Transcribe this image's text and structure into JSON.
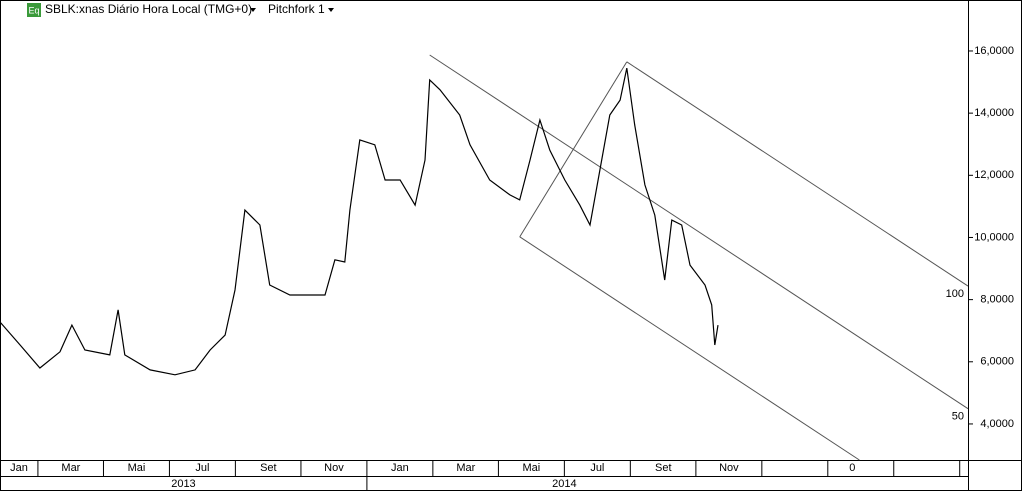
{
  "chart_data": {
    "type": "line",
    "icon": "Eq",
    "title": "SBLK:xnas Diário Hora Local (TMG+0)",
    "study": "Pitchfork 1",
    "color": "#000000",
    "x": [
      2013.071,
      2013.122,
      2013.172,
      2013.223,
      2013.253,
      2013.286,
      2013.349,
      2013.37,
      2013.387,
      2013.451,
      2013.514,
      2013.565,
      2013.603,
      2013.641,
      2013.666,
      2013.691,
      2013.729,
      2013.754,
      2013.805,
      2013.856,
      2013.894,
      2013.919,
      2013.944,
      2013.957,
      2013.982,
      2014.02,
      2014.046,
      2014.084,
      2014.122,
      2014.147,
      2014.159,
      2014.185,
      2014.235,
      2014.261,
      2014.311,
      2014.362,
      2014.387,
      2014.413,
      2014.438,
      2014.463,
      2014.501,
      2014.539,
      2014.565,
      2014.59,
      2014.615,
      2014.641,
      2014.658,
      2014.678,
      2014.704,
      2014.729,
      2014.754,
      2014.772,
      2014.797,
      2014.818,
      2014.856,
      2014.873,
      2014.881,
      2014.889
    ],
    "values": [
      7.28,
      6.54,
      5.8,
      6.32,
      7.18,
      6.38,
      6.22,
      7.67,
      6.22,
      5.74,
      5.58,
      5.74,
      6.38,
      6.86,
      8.31,
      10.88,
      10.4,
      8.47,
      8.15,
      8.15,
      8.15,
      9.28,
      9.21,
      10.88,
      13.14,
      12.98,
      11.85,
      11.85,
      11.04,
      12.49,
      15.07,
      14.75,
      13.94,
      12.98,
      11.85,
      11.37,
      11.21,
      12.49,
      13.78,
      12.81,
      11.85,
      11.04,
      10.4,
      12.17,
      13.94,
      14.42,
      15.45,
      13.62,
      11.69,
      10.72,
      8.63,
      10.56,
      10.4,
      9.11,
      8.47,
      7.83,
      6.54,
      7.18
    ],
    "xlim": [
      2013.071,
      2015.522
    ],
    "ylim": [
      2.84,
      17.64
    ],
    "yticks": [
      {
        "value": 4,
        "label": "4,0000"
      },
      {
        "value": 6,
        "label": "6,0000"
      },
      {
        "value": 8,
        "label": "8,0000"
      },
      {
        "value": 10,
        "label": "10,0000"
      },
      {
        "value": 12,
        "label": "12,0000"
      },
      {
        "value": 14,
        "label": "14,0000"
      },
      {
        "value": 16,
        "label": "16,0000"
      }
    ],
    "xticks": [
      {
        "value": 2013.0,
        "label": "Jan"
      },
      {
        "value": 2013.167,
        "label": "Mar"
      },
      {
        "value": 2013.333,
        "label": "Mai"
      },
      {
        "value": 2013.5,
        "label": "Jul"
      },
      {
        "value": 2013.667,
        "label": "Set"
      },
      {
        "value": 2013.833,
        "label": "Nov"
      },
      {
        "value": 2014.0,
        "label": "Jan"
      },
      {
        "value": 2014.167,
        "label": "Mar"
      },
      {
        "value": 2014.333,
        "label": "Mai"
      },
      {
        "value": 2014.5,
        "label": "Jul"
      },
      {
        "value": 2014.667,
        "label": "Set"
      },
      {
        "value": 2014.833,
        "label": "Nov"
      }
    ],
    "years": [
      2013,
      2014
    ],
    "pitchfork": {
      "points": [
        {
          "x": 2014.159,
          "y": 15.87
        },
        {
          "x": 2014.658,
          "y": 15.65
        },
        {
          "x": 2014.387,
          "y": 10.02
        }
      ],
      "levels": [
        100,
        50,
        0
      ]
    }
  }
}
